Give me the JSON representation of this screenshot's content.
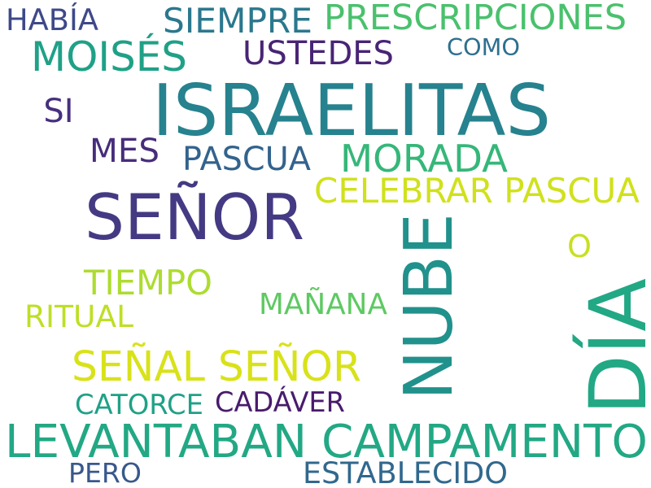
{
  "words": [
    {
      "text": "ISRAELITAS",
      "color": "#26828e"
    },
    {
      "text": "SEÑOR",
      "color": "#443a83"
    },
    {
      "text": "NUBE",
      "color": "#21918c"
    },
    {
      "text": "DÍA",
      "color": "#22a884"
    },
    {
      "text": "LEVANTABAN CAMPAMENTO",
      "color": "#22a884"
    },
    {
      "text": "MORADA",
      "color": "#35b779"
    },
    {
      "text": "SEÑAL SEÑOR",
      "color": "#d8e219"
    },
    {
      "text": "MOISÉS",
      "color": "#1fa187"
    },
    {
      "text": "PRESCRIPCIONES",
      "color": "#4ac16d"
    },
    {
      "text": "CELEBRAR PASCUA",
      "color": "#d0e11c"
    },
    {
      "text": "SIEMPRE",
      "color": "#2a788e"
    },
    {
      "text": "USTEDES",
      "color": "#482475"
    },
    {
      "text": "MES",
      "color": "#472d7b"
    },
    {
      "text": "PASCUA",
      "color": "#33638d"
    },
    {
      "text": "TIEMPO",
      "color": "#addc30"
    },
    {
      "text": "MAÑANA",
      "color": "#5ec962"
    },
    {
      "text": "HABÍA",
      "color": "#3e4989"
    },
    {
      "text": "COMO",
      "color": "#2d708e"
    },
    {
      "text": "SI",
      "color": "#472f7d"
    },
    {
      "text": "O",
      "color": "#c8e020"
    },
    {
      "text": "RITUAL",
      "color": "#bddf26"
    },
    {
      "text": "CATORCE",
      "color": "#1fa187"
    },
    {
      "text": "CADÁVER",
      "color": "#481b6d"
    },
    {
      "text": "PERO",
      "color": "#38588c"
    },
    {
      "text": "ESTABLECIDO",
      "color": "#31688e"
    }
  ]
}
